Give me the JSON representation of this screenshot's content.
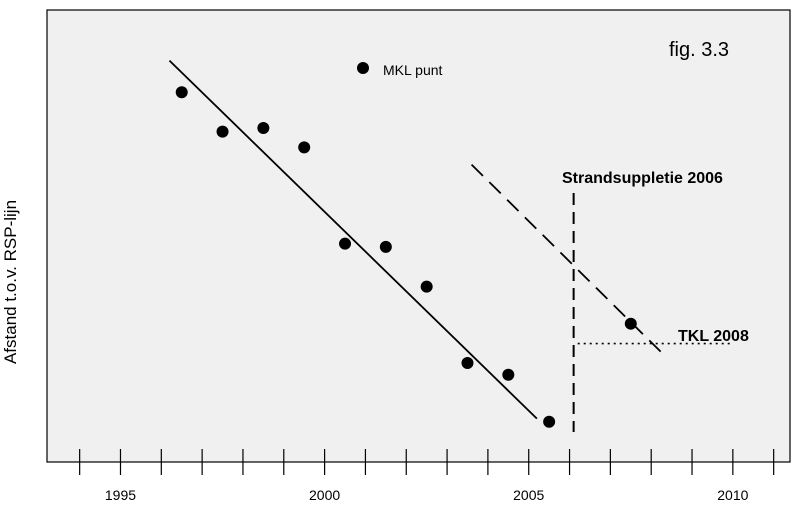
{
  "chart_data": {
    "type": "scatter",
    "figure_label": "fig.  3.3",
    "ylabel": "Afstand t.o.v. RSP-lijn",
    "xlabel": "",
    "xlim": [
      1993.2,
      2011.4
    ],
    "ylim": [
      0,
      100
    ],
    "y_ticks_shown": false,
    "x_tick_labels": [
      "1995",
      "2000",
      "2005",
      "2010"
    ],
    "x_tick_label_values": [
      1995,
      2000,
      2005,
      2010
    ],
    "x_minor_ticks": [
      1994,
      1995,
      1996,
      1997,
      1998,
      1999,
      2000,
      2001,
      2002,
      2003,
      2004,
      2005,
      2006,
      2007,
      2008,
      2009,
      2010,
      2011
    ],
    "grid": false,
    "legend": {
      "label": "MKL punt",
      "position": "top-center"
    },
    "series": [
      {
        "name": "MKL punt",
        "marker": "filled-circle",
        "points": [
          {
            "x": 1996.5,
            "y": 81.8
          },
          {
            "x": 1997.5,
            "y": 73.1
          },
          {
            "x": 1998.5,
            "y": 73.9
          },
          {
            "x": 1999.5,
            "y": 69.6
          },
          {
            "x": 2000.5,
            "y": 48.3
          },
          {
            "x": 2001.5,
            "y": 47.6
          },
          {
            "x": 2002.5,
            "y": 38.8
          },
          {
            "x": 2003.5,
            "y": 21.9
          },
          {
            "x": 2004.5,
            "y": 19.3
          },
          {
            "x": 2005.5,
            "y": 8.9
          },
          {
            "x": 2007.5,
            "y": 30.6
          }
        ]
      }
    ],
    "trend_lines": [
      {
        "style": "solid",
        "from": {
          "x": 1996.2,
          "y": 88.8
        },
        "to": {
          "x": 2005.2,
          "y": 9.6
        }
      },
      {
        "style": "dashed",
        "from": {
          "x": 2003.6,
          "y": 65.8
        },
        "to": {
          "x": 2008.3,
          "y": 23.8
        }
      }
    ],
    "annotations": [
      {
        "text": "Strandsuppletie 2006",
        "x": 2006.1,
        "style": "vertical-dashed"
      },
      {
        "text": "TKL 2008",
        "y": 26.2,
        "x_start": 2006.2,
        "x_end": 2010.0,
        "style": "horizontal-dotted"
      }
    ]
  }
}
